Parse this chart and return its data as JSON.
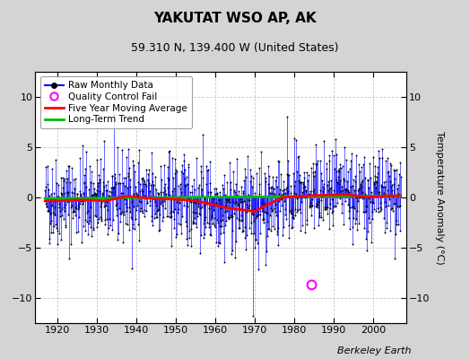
{
  "title": "YAKUTAT WSO AP, AK",
  "subtitle": "59.310 N, 139.400 W (United States)",
  "ylabel": "Temperature Anomaly (°C)",
  "credit": "Berkeley Earth",
  "ylim": [
    -12.5,
    12.5
  ],
  "yticks": [
    -10,
    -5,
    0,
    5,
    10
  ],
  "xlim": [
    1914.5,
    2008.5
  ],
  "xticks": [
    1920,
    1930,
    1940,
    1950,
    1960,
    1970,
    1980,
    1990,
    2000
  ],
  "fig_bg_color": "#d4d4d4",
  "plot_bg_color": "#ffffff",
  "grid_color": "#c8c8c8",
  "line_color": "#0000ff",
  "dot_color": "#000000",
  "ma_color": "#ff0000",
  "trend_color": "#00bb00",
  "qc_color": "#ff00ff",
  "seed": 42,
  "start_year": 1917,
  "end_year": 2007,
  "qc_x": 1984.5,
  "qc_y": -8.7,
  "title_fontsize": 11,
  "subtitle_fontsize": 9,
  "tick_labelsize": 8,
  "legend_fontsize": 7.5,
  "ylabel_fontsize": 8,
  "credit_fontsize": 8
}
